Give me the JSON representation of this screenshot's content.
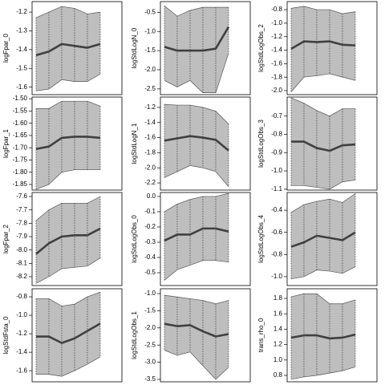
{
  "chart_data": [
    {
      "type": "band_line",
      "ylabel": "logFpar_0",
      "x": [
        1,
        2,
        3,
        4,
        5,
        6
      ],
      "xlim": [
        0.69,
        7.69
      ],
      "ylim": [
        -1.64,
        -1.144
      ],
      "yticks": [
        -1.2,
        -1.3,
        -1.4,
        -1.5,
        -1.6
      ],
      "values": [
        -1.43,
        -1.41,
        -1.37,
        -1.38,
        -1.39,
        -1.37
      ],
      "upper": [
        -1.23,
        -1.2,
        -1.17,
        -1.18,
        -1.21,
        -1.2
      ],
      "lower": [
        -1.62,
        -1.61,
        -1.56,
        -1.57,
        -1.57,
        -1.53
      ],
      "color": "#404040",
      "band_color": "#bebebe"
    },
    {
      "type": "band_line",
      "ylabel": "logStdLogN_0",
      "x": [
        1,
        2,
        3,
        4,
        5,
        6
      ],
      "xlim": [
        0.69,
        7.69
      ],
      "ylim": [
        -2.65,
        -0.22
      ],
      "yticks": [
        -0.5,
        {
          "value": -1,
          "label": "-1.0"
        },
        -1.5,
        {
          "value": -2,
          "label": "-2.0"
        },
        -2.5
      ],
      "values": [
        -1.4,
        -1.5,
        -1.5,
        -1.5,
        -1.45,
        -0.88
      ],
      "upper": [
        -0.33,
        -0.6,
        -0.45,
        -0.37,
        -0.37,
        -0.37
      ],
      "lower": [
        -2.28,
        -2.45,
        -2.28,
        -2.6,
        -2.6,
        -1.57
      ],
      "color": "#404040",
      "band_color": "#bebebe"
    },
    {
      "type": "band_line",
      "ylabel": "logStdLogObs_2",
      "x": [
        1,
        2,
        3,
        4,
        5,
        6
      ],
      "xlim": [
        0.69,
        7.69
      ],
      "ylim": [
        -2.06,
        -0.68
      ],
      "yticks": [
        -0.8,
        {
          "value": -1,
          "label": "-1.0"
        },
        -1.2,
        -1.4,
        -1.6,
        -1.8,
        {
          "value": -2,
          "label": "-2.0"
        }
      ],
      "values": [
        -1.38,
        -1.27,
        -1.28,
        -1.27,
        -1.32,
        -1.33
      ],
      "upper": [
        -0.78,
        -0.75,
        -0.8,
        -0.8,
        -0.86,
        -0.83
      ],
      "lower": [
        -2.02,
        -1.8,
        -1.78,
        -1.75,
        -1.8,
        -1.85
      ],
      "color": "#404040",
      "band_color": "#bebebe"
    },
    {
      "type": "band_line",
      "ylabel": "logFpar_1",
      "x": [
        1,
        2,
        3,
        4,
        5,
        6
      ],
      "xlim": [
        0.69,
        7.69
      ],
      "ylim": [
        -1.873,
        -1.493
      ],
      "yticks": [
        {
          "value": -1.5,
          "label": "-1.50"
        },
        -1.55,
        {
          "value": -1.6,
          "label": "-1.60"
        },
        -1.65,
        {
          "value": -1.7,
          "label": "-1.70"
        },
        -1.75,
        {
          "value": -1.8,
          "label": "-1.80"
        },
        -1.85
      ],
      "values": [
        -1.705,
        -1.695,
        -1.66,
        -1.655,
        -1.655,
        -1.66
      ],
      "upper": [
        -1.54,
        -1.54,
        -1.51,
        -1.51,
        -1.51,
        -1.53
      ],
      "lower": [
        -1.87,
        -1.85,
        -1.8,
        -1.79,
        -1.79,
        -1.79
      ],
      "color": "#404040",
      "band_color": "#bebebe"
    },
    {
      "type": "band_line",
      "ylabel": "logStdLogN_1",
      "x": [
        1,
        2,
        3,
        4,
        5,
        6
      ],
      "xlim": [
        0.69,
        7.69
      ],
      "ylim": [
        -2.295,
        -1.063
      ],
      "yticks": [
        -1.2,
        -1.4,
        -1.6,
        -1.8,
        {
          "value": -2,
          "label": "-2.0"
        },
        -2.2
      ],
      "values": [
        -1.64,
        -1.61,
        -1.58,
        -1.6,
        -1.63,
        -1.77
      ],
      "upper": [
        -1.16,
        -1.17,
        -1.17,
        -1.2,
        -1.25,
        -1.42
      ],
      "lower": [
        -2.13,
        -2.05,
        -1.97,
        -2.0,
        -2.05,
        -2.25
      ],
      "color": "#404040",
      "band_color": "#bebebe"
    },
    {
      "type": "band_line",
      "ylabel": "logStdLogObs_3",
      "x": [
        1,
        2,
        3,
        4,
        5,
        6
      ],
      "xlim": [
        0.69,
        7.69
      ],
      "ylim": [
        -1.105,
        -0.596
      ],
      "yticks": [
        -0.7,
        -0.8,
        -0.9,
        {
          "value": -1,
          "label": "-1.0"
        },
        -1.1
      ],
      "values": [
        -0.84,
        -0.84,
        -0.875,
        -0.89,
        -0.86,
        -0.855
      ],
      "upper": [
        -0.6,
        -0.63,
        -0.67,
        -0.7,
        -0.66,
        -0.66
      ],
      "lower": [
        -1.08,
        -1.08,
        -1.09,
        -1.1,
        -1.06,
        -1.05
      ],
      "color": "#404040",
      "band_color": "#bebebe"
    },
    {
      "type": "band_line",
      "ylabel": "logFpar_2",
      "x": [
        1,
        2,
        3,
        4,
        5,
        6
      ],
      "xlim": [
        0.69,
        7.69
      ],
      "ylim": [
        -8.266,
        -7.57
      ],
      "yticks": [
        -7.6,
        -7.7,
        -7.8,
        -7.9,
        {
          "value": -8,
          "label": "-8.0"
        },
        -8.1,
        -8.2
      ],
      "values": [
        -8.03,
        -7.95,
        -7.9,
        -7.89,
        -7.89,
        -7.84
      ],
      "upper": [
        -7.78,
        -7.7,
        -7.65,
        -7.65,
        -7.65,
        -7.6
      ],
      "lower": [
        -8.25,
        -8.2,
        -8.14,
        -8.13,
        -8.12,
        -8.06
      ],
      "color": "#404040",
      "band_color": "#bebebe"
    },
    {
      "type": "band_line",
      "ylabel": "logStdLogObs_0",
      "x": [
        1,
        2,
        3,
        4,
        5,
        6
      ],
      "xlim": [
        0.69,
        7.69
      ],
      "ylim": [
        -0.584,
        0.026
      ],
      "yticks": [
        {
          "value": 0,
          "label": "0.0"
        },
        -0.1,
        -0.2,
        -0.3,
        -0.4,
        -0.5
      ],
      "values": [
        -0.29,
        -0.25,
        -0.25,
        -0.21,
        -0.21,
        -0.23
      ],
      "upper": [
        -0.1,
        -0.05,
        -0.02,
        0,
        0,
        0.02
      ],
      "lower": [
        -0.55,
        -0.48,
        -0.45,
        -0.42,
        -0.42,
        -0.43
      ],
      "color": "#404040",
      "band_color": "#bebebe"
    },
    {
      "type": "band_line",
      "ylabel": "logStdLogObs_4",
      "x": [
        1,
        2,
        3,
        4,
        5,
        6
      ],
      "xlim": [
        0.69,
        7.69
      ],
      "ylim": [
        -1.08,
        -0.24
      ],
      "yticks": [
        -0.4,
        -0.6,
        -0.8,
        {
          "value": -1,
          "label": "-1.0"
        }
      ],
      "values": [
        -0.73,
        -0.69,
        -0.63,
        -0.65,
        -0.67,
        -0.6
      ],
      "upper": [
        -0.42,
        -0.35,
        -0.32,
        -0.3,
        -0.33,
        -0.25
      ],
      "lower": [
        -1.02,
        -1.0,
        -0.94,
        -0.95,
        -0.97,
        -0.91
      ],
      "color": "#404040",
      "band_color": "#bebebe"
    },
    {
      "type": "band_line",
      "ylabel": "logStdFsta_0",
      "x": [
        1,
        2,
        3,
        4,
        5,
        6
      ],
      "xlim": [
        0.69,
        7.69
      ],
      "ylim": [
        -1.72,
        -0.713
      ],
      "yticks": [
        -0.8,
        {
          "value": -1,
          "label": "-1.0"
        },
        -1.2,
        -1.4,
        -1.6
      ],
      "values": [
        -1.23,
        -1.23,
        -1.3,
        -1.25,
        -1.17,
        -1.09
      ],
      "upper": [
        -0.82,
        -0.82,
        -0.9,
        -0.88,
        -0.8,
        -0.75
      ],
      "lower": [
        -1.64,
        -1.64,
        -1.66,
        -1.6,
        -1.53,
        -1.45
      ],
      "color": "#404040",
      "band_color": "#bebebe"
    },
    {
      "type": "band_line",
      "ylabel": "logStdLogObs_1",
      "x": [
        1,
        2,
        3,
        4,
        5,
        6
      ],
      "xlim": [
        0.69,
        7.69
      ],
      "ylim": [
        -3.57,
        -0.86
      ],
      "yticks": [
        {
          "value": -1,
          "label": "-1.0"
        },
        -1.5,
        {
          "value": -2,
          "label": "-2.0"
        },
        -2.5,
        {
          "value": -3,
          "label": "-3.0"
        },
        -3.5
      ],
      "values": [
        -1.88,
        -1.95,
        -1.92,
        -2.1,
        -2.25,
        -2.18
      ],
      "upper": [
        -1.05,
        -1.1,
        -1.15,
        -1.2,
        -1.3,
        -1.2
      ],
      "lower": [
        -2.65,
        -2.8,
        -2.7,
        -3.1,
        -3.5,
        -3.15
      ],
      "color": "#404040",
      "band_color": "#bebebe"
    },
    {
      "type": "band_line",
      "ylabel": "trans_rho_0",
      "x": [
        1,
        2,
        3,
        4,
        5,
        6
      ],
      "xlim": [
        0.69,
        7.69
      ],
      "ylim": [
        0.717,
        1.925
      ],
      "yticks": [
        1.8,
        1.6,
        1.4,
        1.2,
        {
          "value": 1,
          "label": "1.0"
        },
        0.8
      ],
      "values": [
        1.29,
        1.32,
        1.32,
        1.28,
        1.29,
        1.33
      ],
      "upper": [
        1.82,
        1.86,
        1.86,
        1.73,
        1.73,
        1.78
      ],
      "lower": [
        0.75,
        0.78,
        0.8,
        0.83,
        0.86,
        0.91
      ],
      "color": "#404040",
      "band_color": "#bebebe"
    }
  ]
}
